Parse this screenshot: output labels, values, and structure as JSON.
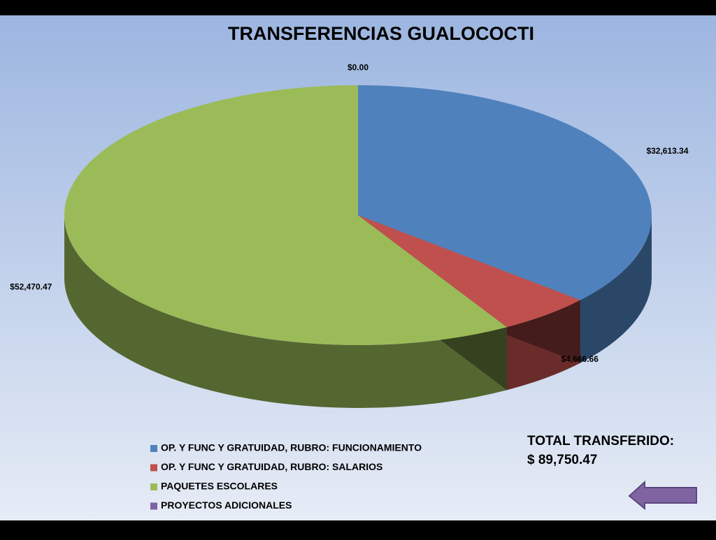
{
  "chart_data": {
    "type": "pie3d",
    "title": "TRANSFERENCIAS GUALOCOCTI",
    "categories": [
      "OP. Y FUNC Y GRATUIDAD,  RUBRO: FUNCIONAMIENTO",
      "OP. Y FUNC Y GRATUIDAD,  RUBRO: SALARIOS",
      "PAQUETES ESCOLARES",
      "PROYECTOS  ADICIONALES"
    ],
    "values": [
      32613.34,
      4666.66,
      52470.47,
      0
    ],
    "value_labels": [
      "$32,613.34",
      "$4,666.66",
      "$52,470.47",
      "$0.00"
    ],
    "colors": [
      "#4f81bd",
      "#c0504d",
      "#9bbb59",
      "#8064a2"
    ],
    "annotations": [
      "TOTAL TRANSFERIDO:",
      "$ 89,750.47"
    ]
  }
}
